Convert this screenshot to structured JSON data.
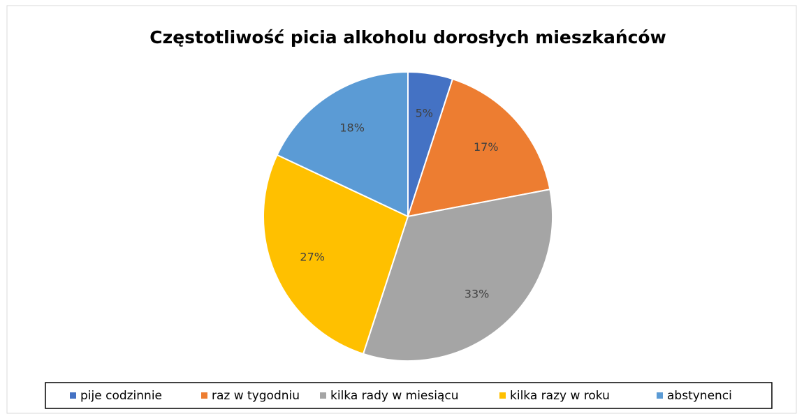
{
  "chart_data": {
    "type": "pie",
    "title": "Częstotliwość picia alkoholu dorosłych mieszkańców",
    "categories": [
      "pije codzinnie",
      "raz w tygodniu",
      "kilka rady w miesiącu",
      "kilka razy w roku",
      "abstynenci"
    ],
    "values": [
      5,
      17,
      33,
      27,
      18
    ],
    "value_labels": [
      "5%",
      "17%",
      "33%",
      "27%",
      "18%"
    ],
    "colors": [
      "#4472c4",
      "#ed7d31",
      "#a5a5a5",
      "#ffc000",
      "#5b9bd5"
    ],
    "legend": "bottom"
  }
}
